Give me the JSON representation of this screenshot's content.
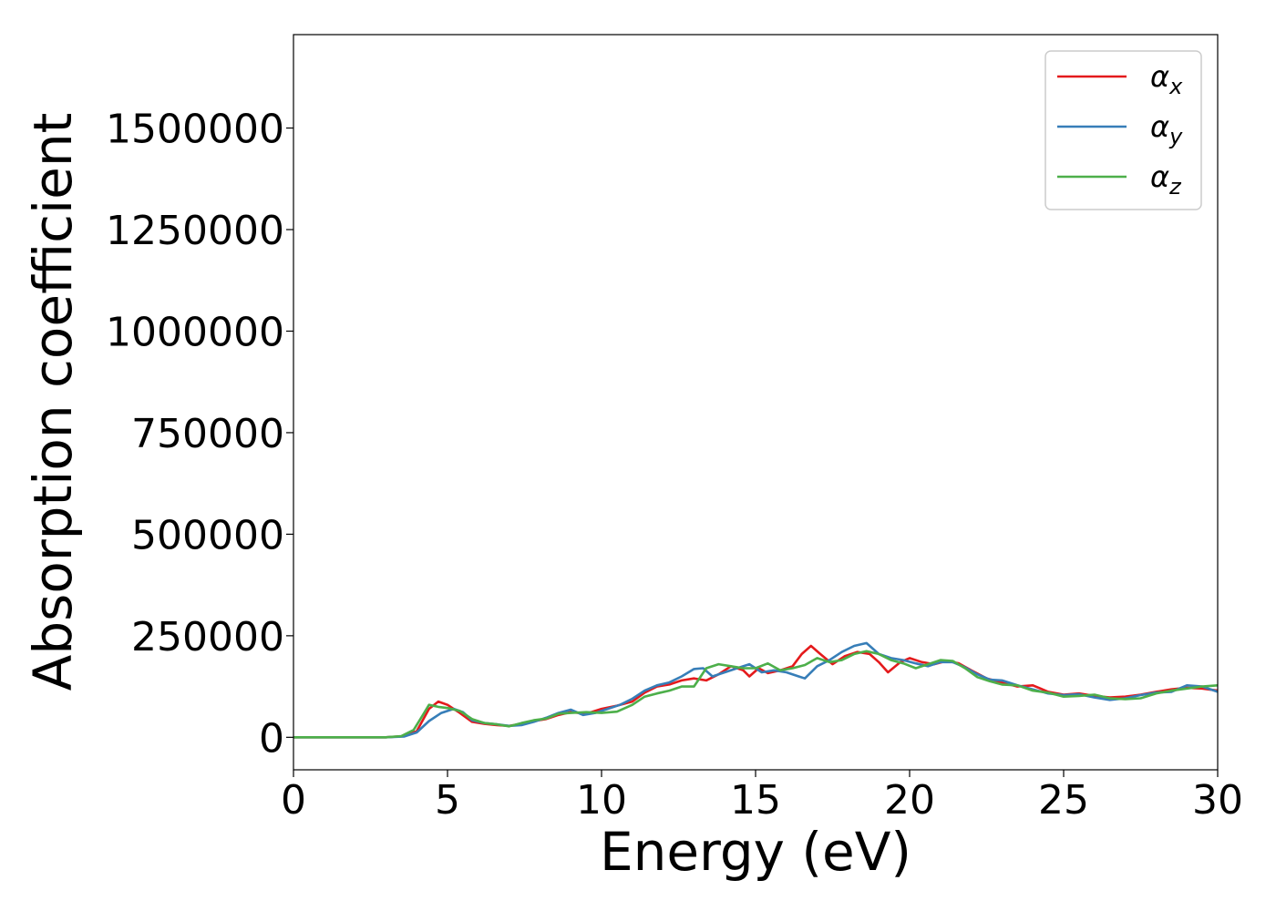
{
  "chart_data": {
    "type": "line",
    "title": "",
    "xlabel": "Energy (eV)",
    "ylabel": "Absorption coefficient",
    "xlim": [
      0,
      30
    ],
    "ylim": [
      -80000,
      1730000
    ],
    "xticks": [
      0,
      5,
      10,
      15,
      20,
      25,
      30
    ],
    "xtick_labels": [
      "0",
      "5",
      "10",
      "15",
      "20",
      "25",
      "30"
    ],
    "yticks": [
      0,
      250000,
      500000,
      750000,
      1000000,
      1250000,
      1500000
    ],
    "ytick_labels": [
      "0",
      "250000",
      "500000",
      "750000",
      "1000000",
      "1250000",
      "1500000"
    ],
    "grid": false,
    "legend_position": "top-right",
    "series": [
      {
        "name": "αx",
        "legend_base": "α",
        "legend_sub": "x",
        "color": "#e41a1c",
        "points": [
          [
            0,
            0
          ],
          [
            3,
            0
          ],
          [
            3.6,
            3000
          ],
          [
            4.0,
            15000
          ],
          [
            4.4,
            70000
          ],
          [
            4.7,
            88000
          ],
          [
            5.0,
            80000
          ],
          [
            5.4,
            60000
          ],
          [
            5.8,
            38000
          ],
          [
            6.2,
            33000
          ],
          [
            6.6,
            30000
          ],
          [
            7.0,
            28000
          ],
          [
            7.4,
            33000
          ],
          [
            7.8,
            40000
          ],
          [
            8.2,
            45000
          ],
          [
            8.6,
            55000
          ],
          [
            9.0,
            62000
          ],
          [
            9.5,
            58000
          ],
          [
            10.0,
            70000
          ],
          [
            10.5,
            78000
          ],
          [
            11.0,
            88000
          ],
          [
            11.4,
            110000
          ],
          [
            11.8,
            125000
          ],
          [
            12.2,
            130000
          ],
          [
            12.6,
            140000
          ],
          [
            13.0,
            145000
          ],
          [
            13.4,
            140000
          ],
          [
            13.8,
            155000
          ],
          [
            14.2,
            175000
          ],
          [
            14.6,
            165000
          ],
          [
            14.8,
            150000
          ],
          [
            15.1,
            170000
          ],
          [
            15.4,
            158000
          ],
          [
            15.8,
            165000
          ],
          [
            16.2,
            175000
          ],
          [
            16.5,
            205000
          ],
          [
            16.8,
            225000
          ],
          [
            17.1,
            205000
          ],
          [
            17.5,
            180000
          ],
          [
            17.9,
            200000
          ],
          [
            18.3,
            210000
          ],
          [
            18.7,
            205000
          ],
          [
            19.0,
            185000
          ],
          [
            19.3,
            160000
          ],
          [
            19.7,
            185000
          ],
          [
            20.0,
            195000
          ],
          [
            20.4,
            185000
          ],
          [
            20.8,
            180000
          ],
          [
            21.2,
            188000
          ],
          [
            21.6,
            182000
          ],
          [
            22.0,
            165000
          ],
          [
            22.5,
            145000
          ],
          [
            23.0,
            135000
          ],
          [
            23.5,
            125000
          ],
          [
            24.0,
            128000
          ],
          [
            24.5,
            112000
          ],
          [
            25.0,
            105000
          ],
          [
            25.5,
            108000
          ],
          [
            26.0,
            102000
          ],
          [
            26.5,
            98000
          ],
          [
            27.0,
            100000
          ],
          [
            27.5,
            105000
          ],
          [
            28.0,
            112000
          ],
          [
            28.5,
            118000
          ],
          [
            29.0,
            122000
          ],
          [
            29.5,
            120000
          ],
          [
            30.0,
            115000
          ]
        ]
      },
      {
        "name": "αy",
        "legend_base": "α",
        "legend_sub": "y",
        "color": "#377eb8",
        "points": [
          [
            0,
            0
          ],
          [
            3,
            0
          ],
          [
            3.6,
            2000
          ],
          [
            4.0,
            12000
          ],
          [
            4.4,
            40000
          ],
          [
            4.8,
            60000
          ],
          [
            5.2,
            70000
          ],
          [
            5.5,
            62000
          ],
          [
            5.8,
            42000
          ],
          [
            6.2,
            35000
          ],
          [
            6.6,
            32000
          ],
          [
            7.0,
            28000
          ],
          [
            7.4,
            30000
          ],
          [
            7.8,
            38000
          ],
          [
            8.2,
            48000
          ],
          [
            8.6,
            60000
          ],
          [
            9.0,
            68000
          ],
          [
            9.4,
            55000
          ],
          [
            9.8,
            60000
          ],
          [
            10.2,
            70000
          ],
          [
            10.6,
            80000
          ],
          [
            11.0,
            95000
          ],
          [
            11.4,
            115000
          ],
          [
            11.8,
            128000
          ],
          [
            12.2,
            135000
          ],
          [
            12.6,
            150000
          ],
          [
            13.0,
            168000
          ],
          [
            13.3,
            170000
          ],
          [
            13.6,
            150000
          ],
          [
            14.0,
            160000
          ],
          [
            14.4,
            170000
          ],
          [
            14.8,
            180000
          ],
          [
            15.2,
            160000
          ],
          [
            15.6,
            165000
          ],
          [
            16.0,
            160000
          ],
          [
            16.4,
            150000
          ],
          [
            16.6,
            145000
          ],
          [
            17.0,
            175000
          ],
          [
            17.4,
            190000
          ],
          [
            17.8,
            210000
          ],
          [
            18.2,
            225000
          ],
          [
            18.6,
            232000
          ],
          [
            19.0,
            205000
          ],
          [
            19.4,
            195000
          ],
          [
            19.8,
            190000
          ],
          [
            20.2,
            182000
          ],
          [
            20.6,
            175000
          ],
          [
            21.0,
            185000
          ],
          [
            21.4,
            185000
          ],
          [
            21.8,
            172000
          ],
          [
            22.2,
            155000
          ],
          [
            22.6,
            142000
          ],
          [
            23.0,
            140000
          ],
          [
            23.5,
            128000
          ],
          [
            24.0,
            118000
          ],
          [
            24.5,
            108000
          ],
          [
            25.0,
            104000
          ],
          [
            25.5,
            106000
          ],
          [
            26.0,
            98000
          ],
          [
            26.5,
            92000
          ],
          [
            27.0,
            96000
          ],
          [
            27.5,
            104000
          ],
          [
            28.0,
            110000
          ],
          [
            28.5,
            112000
          ],
          [
            29.0,
            128000
          ],
          [
            29.5,
            125000
          ],
          [
            30.0,
            112000
          ]
        ]
      },
      {
        "name": "αz",
        "legend_base": "α",
        "legend_sub": "z",
        "color": "#4daf4a",
        "points": [
          [
            0,
            0
          ],
          [
            3,
            0
          ],
          [
            3.5,
            3000
          ],
          [
            3.9,
            18000
          ],
          [
            4.2,
            55000
          ],
          [
            4.4,
            80000
          ],
          [
            4.7,
            75000
          ],
          [
            5.0,
            72000
          ],
          [
            5.4,
            65000
          ],
          [
            5.8,
            45000
          ],
          [
            6.2,
            35000
          ],
          [
            6.6,
            32000
          ],
          [
            7.0,
            27000
          ],
          [
            7.4,
            35000
          ],
          [
            7.8,
            42000
          ],
          [
            8.2,
            46000
          ],
          [
            8.6,
            58000
          ],
          [
            9.0,
            60000
          ],
          [
            9.5,
            62000
          ],
          [
            10.0,
            60000
          ],
          [
            10.5,
            63000
          ],
          [
            11.0,
            80000
          ],
          [
            11.4,
            100000
          ],
          [
            11.8,
            108000
          ],
          [
            12.2,
            115000
          ],
          [
            12.6,
            125000
          ],
          [
            13.0,
            125000
          ],
          [
            13.4,
            170000
          ],
          [
            13.8,
            180000
          ],
          [
            14.2,
            175000
          ],
          [
            14.6,
            170000
          ],
          [
            15.0,
            170000
          ],
          [
            15.4,
            182000
          ],
          [
            15.8,
            165000
          ],
          [
            16.2,
            170000
          ],
          [
            16.6,
            178000
          ],
          [
            17.0,
            195000
          ],
          [
            17.4,
            185000
          ],
          [
            17.8,
            190000
          ],
          [
            18.2,
            205000
          ],
          [
            18.6,
            212000
          ],
          [
            19.0,
            205000
          ],
          [
            19.4,
            190000
          ],
          [
            19.8,
            182000
          ],
          [
            20.2,
            170000
          ],
          [
            20.6,
            180000
          ],
          [
            21.0,
            190000
          ],
          [
            21.4,
            188000
          ],
          [
            21.8,
            170000
          ],
          [
            22.2,
            148000
          ],
          [
            22.6,
            138000
          ],
          [
            23.0,
            130000
          ],
          [
            23.5,
            128000
          ],
          [
            24.0,
            115000
          ],
          [
            24.5,
            110000
          ],
          [
            25.0,
            100000
          ],
          [
            25.5,
            102000
          ],
          [
            26.0,
            105000
          ],
          [
            26.5,
            96000
          ],
          [
            27.0,
            94000
          ],
          [
            27.5,
            96000
          ],
          [
            28.0,
            108000
          ],
          [
            28.5,
            115000
          ],
          [
            29.0,
            120000
          ],
          [
            29.5,
            125000
          ],
          [
            30.0,
            128000
          ]
        ]
      }
    ]
  }
}
